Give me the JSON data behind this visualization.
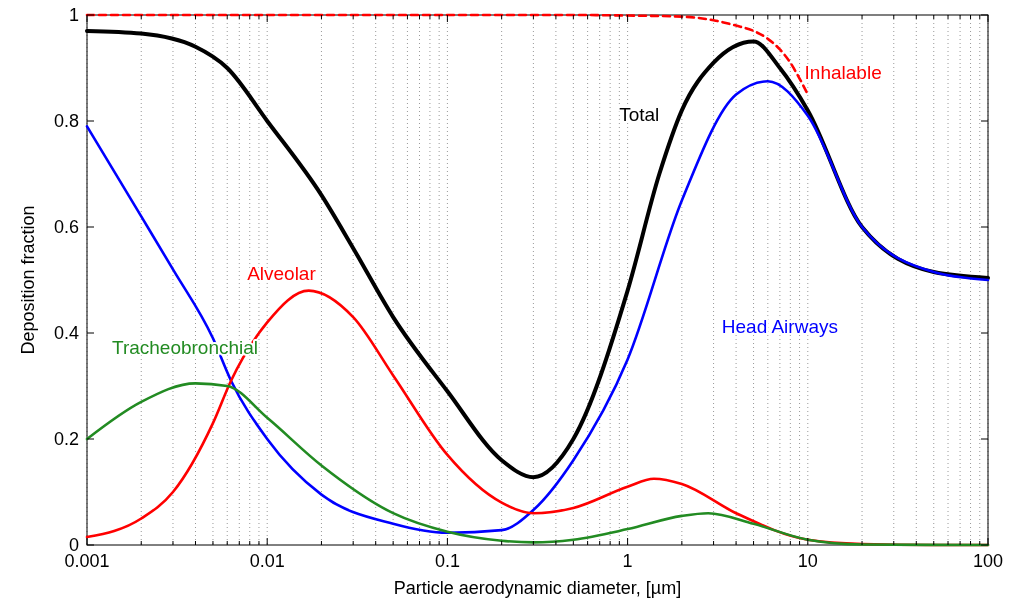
{
  "chart_data": {
    "type": "line",
    "xlabel": "Particle aerodynamic diameter, [µm]",
    "ylabel": "Deposition fraction",
    "log": "x",
    "grid": "x",
    "line_style": "solid",
    "marker": "none",
    "xlim": [
      0.001,
      100
    ],
    "ylim": [
      0,
      1
    ],
    "xticks": [
      0.001,
      {
        "value": 0.002,
        "label": null
      },
      {
        "value": 0.003,
        "label": null
      },
      {
        "value": 0.004,
        "label": null
      },
      {
        "value": 0.005,
        "label": null
      },
      {
        "value": 0.006,
        "label": null
      },
      {
        "value": 0.007,
        "label": null
      },
      {
        "value": 0.008,
        "label": null
      },
      {
        "value": 0.009,
        "label": null
      },
      0.01,
      {
        "value": 0.02,
        "label": null
      },
      {
        "value": 0.03,
        "label": null
      },
      {
        "value": 0.04,
        "label": null
      },
      {
        "value": 0.05,
        "label": null
      },
      {
        "value": 0.06,
        "label": null
      },
      {
        "value": 0.07,
        "label": null
      },
      {
        "value": 0.08,
        "label": null
      },
      {
        "value": 0.09,
        "label": null
      },
      0.1,
      {
        "value": 0.2,
        "label": null
      },
      {
        "value": 0.3,
        "label": null
      },
      {
        "value": 0.4,
        "label": null
      },
      {
        "value": 0.5,
        "label": null
      },
      {
        "value": 0.6,
        "label": null
      },
      {
        "value": 0.7,
        "label": null
      },
      {
        "value": 0.8,
        "label": null
      },
      {
        "value": 0.9,
        "label": null
      },
      1,
      {
        "value": 2,
        "label": null
      },
      {
        "value": 3,
        "label": null
      },
      {
        "value": 4,
        "label": null
      },
      {
        "value": 5,
        "label": null
      },
      {
        "value": 6,
        "label": null
      },
      {
        "value": 7,
        "label": null
      },
      {
        "value": 8,
        "label": null
      },
      {
        "value": 9,
        "label": null
      },
      10,
      {
        "value": 20,
        "label": null
      },
      {
        "value": 30,
        "label": null
      },
      {
        "value": 40,
        "label": null
      },
      {
        "value": 50,
        "label": null
      },
      {
        "value": 60,
        "label": null
      },
      {
        "value": 70,
        "label": null
      },
      {
        "value": 80,
        "label": null
      },
      {
        "value": 90,
        "label": null
      },
      100
    ],
    "yticks": [
      0,
      0.2,
      0.4,
      0.6,
      0.8,
      1
    ],
    "series": [
      {
        "name": "Inhalable",
        "color": "#ff0000",
        "line_style": "dashed",
        "x": [
          0.001,
          0.01,
          0.1,
          0.5,
          1,
          2,
          3,
          4,
          5,
          6,
          7,
          8,
          9,
          10
        ],
        "values": [
          1,
          1,
          1,
          1,
          0.999,
          0.997,
          0.99,
          0.98,
          0.97,
          0.955,
          0.935,
          0.91,
          0.88,
          0.85
        ]
      },
      {
        "name": "Total",
        "color": "#000000",
        "x": [
          0.001,
          0.002,
          0.004,
          0.006,
          0.01,
          0.02,
          0.03,
          0.05,
          0.1,
          0.2,
          0.3,
          0.5,
          1,
          1.5,
          2,
          3,
          5,
          7,
          10,
          20,
          50,
          100
        ],
        "values": [
          0.97,
          0.965,
          0.94,
          0.9,
          0.8,
          0.66,
          0.56,
          0.43,
          0.29,
          0.16,
          0.128,
          0.2,
          0.48,
          0.7,
          0.82,
          0.91,
          0.95,
          0.9,
          0.82,
          0.6,
          0.515,
          0.504
        ]
      },
      {
        "name": "Head Airways",
        "color": "#0000ff",
        "x": [
          0.001,
          0.002,
          0.003,
          0.005,
          0.0063,
          0.01,
          0.02,
          0.05,
          0.1,
          0.2,
          0.3,
          0.5,
          1,
          2,
          4,
          6,
          10,
          20,
          50,
          100
        ],
        "values": [
          0.79,
          0.62,
          0.52,
          0.39,
          0.31,
          0.2,
          0.095,
          0.04,
          0.023,
          0.028,
          0.066,
          0.16,
          0.35,
          0.65,
          0.85,
          0.875,
          0.81,
          0.6,
          0.515,
          0.5
        ]
      },
      {
        "name": "Alveolar",
        "color": "#ff0000",
        "x": [
          0.001,
          0.002,
          0.003,
          0.005,
          0.0063,
          0.01,
          0.017,
          0.03,
          0.05,
          0.1,
          0.2,
          0.3,
          0.5,
          1,
          1.4,
          2,
          4,
          10,
          20,
          50,
          100
        ],
        "values": [
          0.015,
          0.05,
          0.1,
          0.23,
          0.31,
          0.42,
          0.48,
          0.43,
          0.32,
          0.17,
          0.08,
          0.06,
          0.07,
          0.11,
          0.125,
          0.115,
          0.06,
          0.01,
          0.002,
          0,
          0
        ]
      },
      {
        "name": "Tracheobronchial",
        "color": "#228b22",
        "x": [
          0.001,
          0.002,
          0.004,
          0.006,
          0.01,
          0.02,
          0.05,
          0.1,
          0.2,
          0.3,
          0.5,
          1,
          2,
          2.8,
          5,
          10,
          20,
          100
        ],
        "values": [
          0.2,
          0.27,
          0.305,
          0.3,
          0.24,
          0.15,
          0.06,
          0.025,
          0.008,
          0.005,
          0.01,
          0.03,
          0.055,
          0.06,
          0.04,
          0.01,
          0.001,
          0
        ]
      }
    ]
  }
}
